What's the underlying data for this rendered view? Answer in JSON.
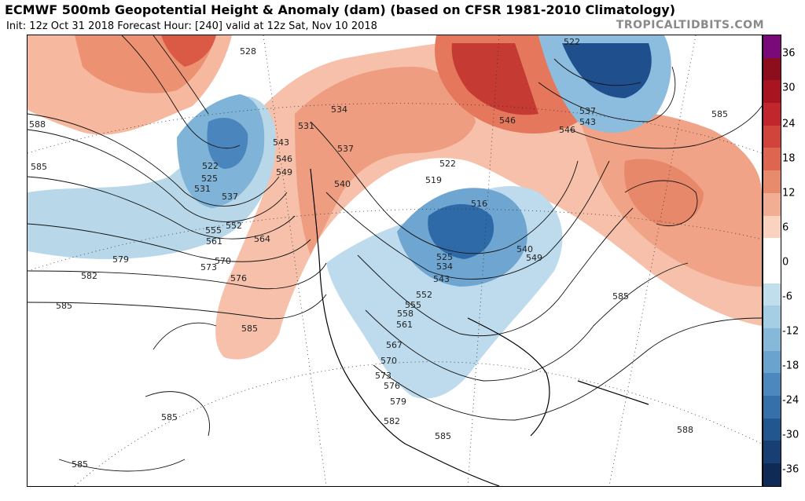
{
  "header": {
    "title": "ECMWF 500mb Geopotential Height & Anomaly (dam) (based on CFSR 1981-2010 Climatology)",
    "subtitle": "Init: 12z Oct 31 2018   Forecast Hour: [240]   valid at 12z Sat, Nov 10 2018",
    "watermark": "TROPICALTIDBITS.COM"
  },
  "colorbar": {
    "labels": [
      "36",
      "30",
      "24",
      "18",
      "12",
      "6",
      "0",
      "-6",
      "-12",
      "-18",
      "-24",
      "-30",
      "-36"
    ],
    "colors": [
      "#7a0a7a",
      "#8c0d1c",
      "#a8141f",
      "#c0262b",
      "#d1443c",
      "#de6650",
      "#e88a6c",
      "#f2ae93",
      "#f9d2c0",
      "#ffffff",
      "#ffffff",
      "#c0deec",
      "#a5cde4",
      "#85b8d9",
      "#6aa3cd",
      "#4c88bd",
      "#3570ab",
      "#22568f",
      "#173f73",
      "#0f2a55"
    ]
  },
  "map": {
    "contour_labels": [
      "528",
      "588",
      "585",
      "522",
      "525",
      "531",
      "537",
      "555",
      "552",
      "561",
      "564",
      "570",
      "573",
      "576",
      "579",
      "582",
      "585",
      "531",
      "543",
      "546",
      "549",
      "534",
      "537",
      "540",
      "522",
      "519",
      "516",
      "525",
      "534",
      "543",
      "540",
      "549",
      "552",
      "555",
      "558",
      "561",
      "567",
      "570",
      "573",
      "576",
      "579",
      "582",
      "585",
      "522",
      "537",
      "543",
      "546",
      "546",
      "585",
      "585",
      "585",
      "588",
      "585",
      "585"
    ]
  }
}
